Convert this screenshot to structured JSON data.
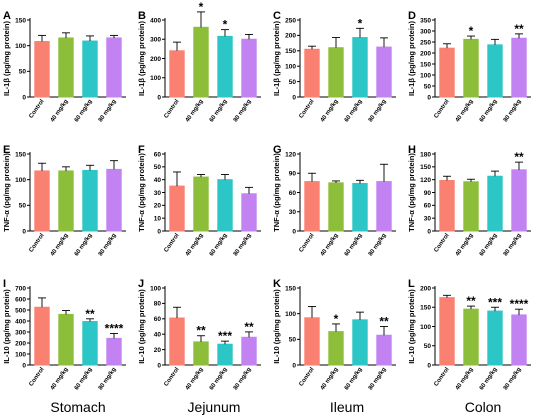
{
  "colors": [
    "#FA8072",
    "#8DBE3A",
    "#2CC6C6",
    "#C382F2"
  ],
  "column_labels": [
    "Stomach",
    "Jejunum",
    "Ileum",
    "Colon"
  ],
  "chart_data": [
    {
      "panel": "A",
      "type": "bar",
      "categories": [
        "Control",
        "40 mg/kg",
        "60 mg/kg",
        "80 mg/kg"
      ],
      "ylabel": "IL-1β (pg/mg protein)",
      "ylim": [
        0,
        150
      ],
      "yticks": [
        0,
        50,
        100,
        150
      ],
      "values": [
        108,
        115,
        109,
        115
      ],
      "errors": [
        12,
        10,
        10,
        5
      ],
      "significance": [
        "",
        "",
        "",
        ""
      ]
    },
    {
      "panel": "B",
      "type": "bar",
      "categories": [
        "Control",
        "40 mg/kg",
        "60 mg/kg",
        "80 mg/kg"
      ],
      "ylabel": "IL-1β (pg/mg protein)",
      "ylim": [
        0,
        400
      ],
      "yticks": [
        0,
        100,
        200,
        300,
        400
      ],
      "values": [
        240,
        362,
        315,
        300
      ],
      "errors": [
        45,
        80,
        35,
        25
      ],
      "significance": [
        "",
        "*",
        "*",
        ""
      ]
    },
    {
      "panel": "C",
      "type": "bar",
      "categories": [
        "Control",
        "40 mg/kg",
        "60 mg/kg",
        "80 mg/kg"
      ],
      "ylabel": "IL-1β (pg/mg protein)",
      "ylim": [
        0,
        250
      ],
      "yticks": [
        0,
        50,
        100,
        150,
        200,
        250
      ],
      "values": [
        155,
        160,
        193,
        162
      ],
      "errors": [
        10,
        33,
        30,
        30
      ],
      "significance": [
        "",
        "",
        "*",
        ""
      ]
    },
    {
      "panel": "D",
      "type": "bar",
      "categories": [
        "Control",
        "40 mg/kg",
        "60 mg/kg",
        "80 mg/kg"
      ],
      "ylabel": "IL-1β (pg/mg protein)",
      "ylim": [
        0,
        350
      ],
      "yticks": [
        0,
        50,
        100,
        150,
        200,
        250,
        300,
        350
      ],
      "values": [
        222,
        262,
        237,
        267
      ],
      "errors": [
        20,
        15,
        25,
        20
      ],
      "significance": [
        "",
        "*",
        "",
        "**"
      ]
    },
    {
      "panel": "E",
      "type": "bar",
      "categories": [
        "Control",
        "40 mg/kg",
        "60 mg/kg",
        "80 mg/kg"
      ],
      "ylabel": "TNF-α (pg/mg protein)",
      "ylim": [
        0,
        150
      ],
      "yticks": [
        0,
        50,
        100,
        150
      ],
      "values": [
        117,
        117,
        118,
        120
      ],
      "errors": [
        15,
        8,
        10,
        17
      ],
      "significance": [
        "",
        "",
        "",
        ""
      ]
    },
    {
      "panel": "F",
      "type": "bar",
      "categories": [
        "Control",
        "40 mg/kg",
        "60 mg/kg",
        "80 mg/kg"
      ],
      "ylabel": "TNF-α (pg/mg protein)",
      "ylim": [
        0,
        60
      ],
      "yticks": [
        0,
        10,
        20,
        30,
        40,
        50,
        60
      ],
      "values": [
        35,
        42,
        40,
        29
      ],
      "errors": [
        11,
        2,
        4,
        5
      ],
      "significance": [
        "",
        "",
        "",
        ""
      ]
    },
    {
      "panel": "G",
      "type": "bar",
      "categories": [
        "Control",
        "40 mg/kg",
        "60 mg/kg",
        "80 mg/kg"
      ],
      "ylabel": "TNF-α (pg/mg protein)",
      "ylim": [
        0,
        120
      ],
      "yticks": [
        0,
        30,
        60,
        90,
        120
      ],
      "values": [
        77,
        75,
        74,
        77
      ],
      "errors": [
        13,
        3,
        5,
        27
      ],
      "significance": [
        "",
        "",
        "",
        ""
      ]
    },
    {
      "panel": "H",
      "type": "bar",
      "categories": [
        "Control",
        "40 mg/kg",
        "60 mg/kg",
        "80 mg/kg"
      ],
      "ylabel": "TNF-α (pg/mg protein)",
      "ylim": [
        0,
        180
      ],
      "yticks": [
        0,
        30,
        60,
        90,
        120,
        150,
        180
      ],
      "values": [
        118,
        115,
        128,
        143
      ],
      "errors": [
        10,
        6,
        12,
        18
      ],
      "significance": [
        "",
        "",
        "",
        "**"
      ]
    },
    {
      "panel": "I",
      "type": "bar",
      "categories": [
        "Control",
        "40 mg/kg",
        "60 mg/kg",
        "80 mg/kg"
      ],
      "ylabel": "IL-10 (pg/mg protein)",
      "ylim": [
        0,
        700
      ],
      "yticks": [
        0,
        100,
        200,
        300,
        400,
        500,
        600,
        700
      ],
      "values": [
        525,
        460,
        395,
        242
      ],
      "errors": [
        85,
        35,
        25,
        45
      ],
      "significance": [
        "",
        "",
        "**",
        "****"
      ]
    },
    {
      "panel": "J",
      "type": "bar",
      "categories": [
        "Control",
        "40 mg/kg",
        "60 mg/kg",
        "80 mg/kg"
      ],
      "ylabel": "IL-10 (pg/mg protein)",
      "ylim": [
        0,
        100
      ],
      "yticks": [
        0,
        20,
        40,
        60,
        80,
        100
      ],
      "values": [
        61,
        30,
        27,
        36
      ],
      "errors": [
        14,
        8,
        4,
        7
      ],
      "significance": [
        "",
        "**",
        "***",
        "**"
      ]
    },
    {
      "panel": "K",
      "type": "bar",
      "categories": [
        "Control",
        "40 mg/kg",
        "60 mg/kg",
        "80 mg/kg"
      ],
      "ylabel": "IL-10 (pg/mg protein)",
      "ylim": [
        0,
        150
      ],
      "yticks": [
        0,
        50,
        100,
        150
      ],
      "values": [
        92,
        65,
        88,
        58
      ],
      "errors": [
        22,
        15,
        15,
        17
      ],
      "significance": [
        "",
        "*",
        "",
        "**"
      ]
    },
    {
      "panel": "L",
      "type": "bar",
      "categories": [
        "Control",
        "40 mg/kg",
        "60 mg/kg",
        "80 mg/kg"
      ],
      "ylabel": "IL-10 (pg/mg protein)",
      "ylim": [
        0,
        200
      ],
      "yticks": [
        0,
        50,
        100,
        150,
        200
      ],
      "values": [
        175,
        145,
        140,
        130
      ],
      "errors": [
        6,
        8,
        10,
        15
      ],
      "significance": [
        "",
        "**",
        "***",
        "****"
      ]
    }
  ]
}
